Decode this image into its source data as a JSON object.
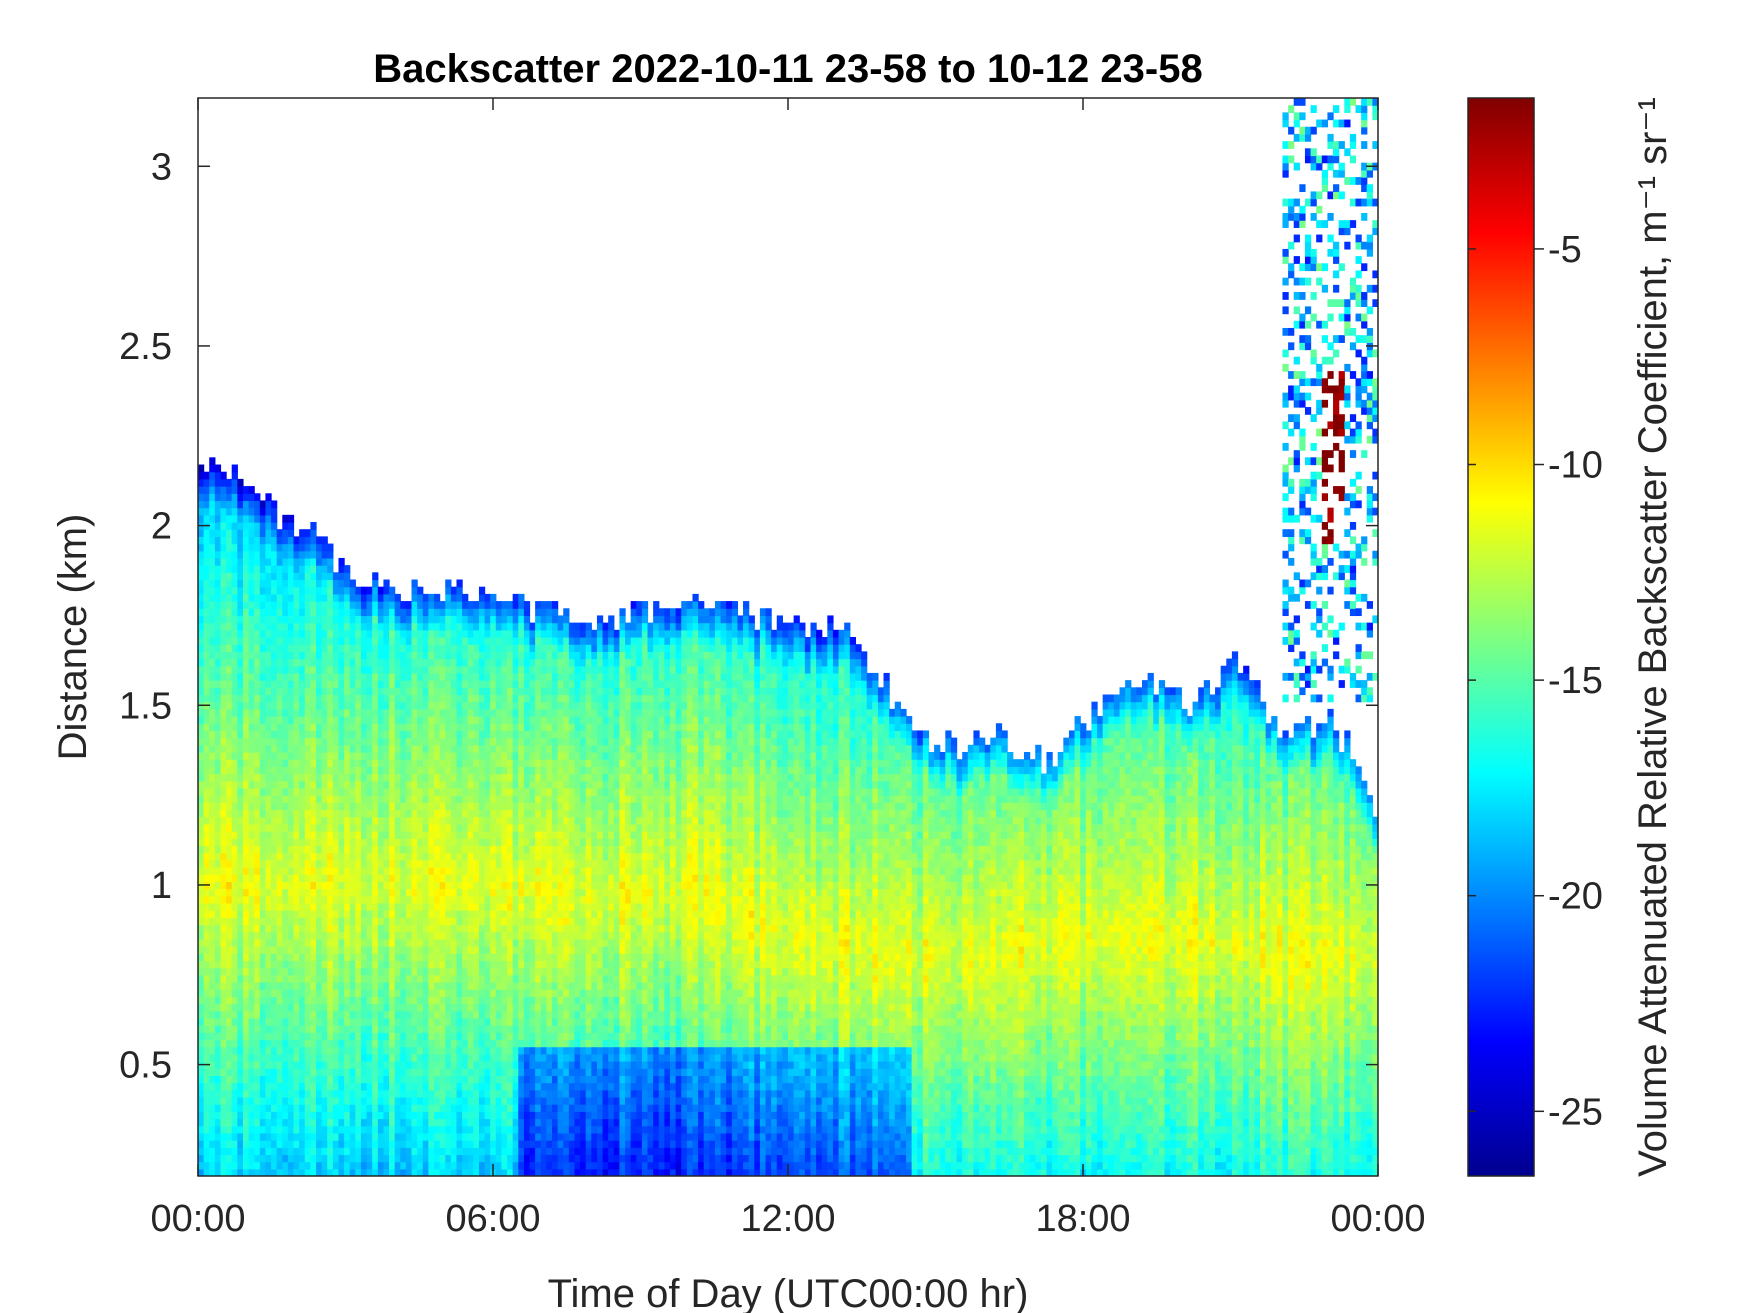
{
  "chart_data": {
    "type": "heatmap",
    "title": "Backscatter 2022-10-11 23-58 to 10-12 23-58",
    "xlabel": "Time of Day (UTC00:00 hr)",
    "ylabel": "Distance (km)",
    "colorbar_label": "Volume Attenuated Relative Backscatter Coefficient, m⁻¹ sr⁻¹",
    "x_ticks": [
      "00:00",
      "06:00",
      "12:00",
      "18:00",
      "00:00"
    ],
    "x_tick_hours": [
      0,
      6,
      12,
      18,
      24
    ],
    "xlim_hours": [
      0,
      24
    ],
    "y_ticks": [
      0.5,
      1,
      1.5,
      2,
      2.5,
      3
    ],
    "y_tick_labels": [
      "0.5",
      "1",
      "1.5",
      "2",
      "2.5",
      "3"
    ],
    "ylim_km": [
      0.19,
      3.19
    ],
    "colorbar_ticks": [
      -5,
      -10,
      -15,
      -20,
      -25
    ],
    "colorbar_tick_labels": [
      "-5",
      "-10",
      "-15",
      "-20",
      "-25"
    ],
    "clim": [
      -26.5,
      -1.5
    ],
    "colormap": "jet",
    "grid": false,
    "layer_top_km": {
      "hours": [
        0,
        0.5,
        1.0,
        1.5,
        2.0,
        2.5,
        3.0,
        4.0,
        5.0,
        6.0,
        7.0,
        8.0,
        9.0,
        10.0,
        11.0,
        12.0,
        13.0,
        13.5,
        14.0,
        14.5,
        15.0,
        15.5,
        16.0,
        16.5,
        17.0,
        17.5,
        18.0,
        18.5,
        19.0,
        19.5,
        20.0,
        20.5,
        21.0,
        21.5,
        22.0,
        22.5,
        23.0,
        23.5,
        24.0
      ],
      "values": [
        2.15,
        2.18,
        2.12,
        2.05,
        2.0,
        1.95,
        1.85,
        1.82,
        1.82,
        1.8,
        1.77,
        1.74,
        1.76,
        1.8,
        1.76,
        1.72,
        1.72,
        1.65,
        1.55,
        1.45,
        1.4,
        1.38,
        1.42,
        1.4,
        1.35,
        1.34,
        1.45,
        1.5,
        1.58,
        1.55,
        1.5,
        1.55,
        1.62,
        1.55,
        1.45,
        1.43,
        1.45,
        1.38,
        1.2
      ]
    },
    "peak_backscatter_km": {
      "hours": [
        0,
        2,
        4,
        6,
        8,
        10,
        12,
        14,
        16,
        18,
        20,
        22,
        24
      ],
      "values": [
        1.0,
        1.0,
        1.0,
        1.0,
        0.95,
        1.0,
        0.85,
        0.8,
        0.8,
        0.85,
        0.85,
        0.8,
        0.8
      ]
    },
    "upper_cloud": {
      "hours_range": [
        21.0,
        24.0
      ],
      "km_range": [
        1.5,
        3.19
      ],
      "max_dB": -3
    }
  }
}
